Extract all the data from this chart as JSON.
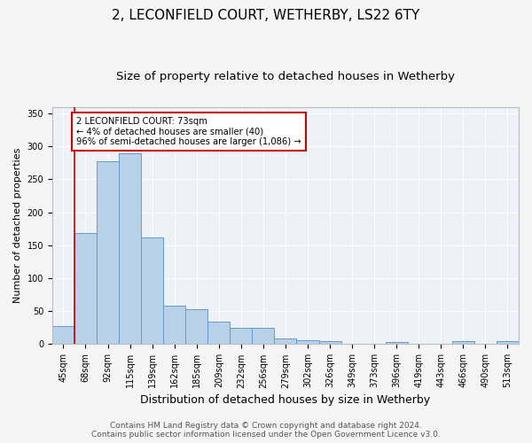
{
  "title1": "2, LECONFIELD COURT, WETHERBY, LS22 6TY",
  "title2": "Size of property relative to detached houses in Wetherby",
  "xlabel": "Distribution of detached houses by size in Wetherby",
  "ylabel": "Number of detached properties",
  "categories": [
    "45sqm",
    "68sqm",
    "92sqm",
    "115sqm",
    "139sqm",
    "162sqm",
    "185sqm",
    "209sqm",
    "232sqm",
    "256sqm",
    "279sqm",
    "302sqm",
    "326sqm",
    "349sqm",
    "373sqm",
    "396sqm",
    "419sqm",
    "443sqm",
    "466sqm",
    "490sqm",
    "513sqm"
  ],
  "values": [
    28,
    168,
    278,
    290,
    162,
    58,
    53,
    34,
    25,
    25,
    9,
    6,
    4,
    1,
    0,
    3,
    1,
    0,
    4,
    0,
    4
  ],
  "bar_color": "#b8d0e8",
  "bar_edge_color": "#6699cc",
  "marker_color": "#cc0000",
  "annotation_text": "2 LECONFIELD COURT: 73sqm\n← 4% of detached houses are smaller (40)\n96% of semi-detached houses are larger (1,086) →",
  "annotation_box_color": "#ffffff",
  "annotation_box_edge": "#cc0000",
  "ylim": [
    0,
    360
  ],
  "yticks": [
    0,
    50,
    100,
    150,
    200,
    250,
    300,
    350
  ],
  "footer1": "Contains HM Land Registry data © Crown copyright and database right 2024.",
  "footer2": "Contains public sector information licensed under the Open Government Licence v3.0.",
  "bg_color": "#f5f5f5",
  "plot_bg_color": "#eef2f8",
  "title1_fontsize": 11,
  "title2_fontsize": 9.5,
  "xlabel_fontsize": 9,
  "ylabel_fontsize": 8,
  "tick_fontsize": 7,
  "footer_fontsize": 6.5
}
